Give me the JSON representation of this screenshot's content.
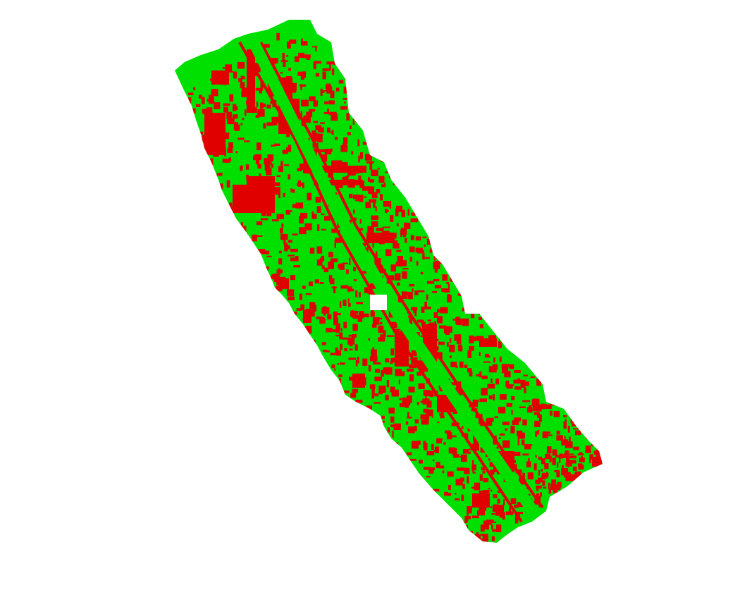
{
  "map": {
    "colors": {
      "background": "#ffffff",
      "green_class": "#00e000",
      "red_class": "#e00000",
      "hole": "#ffffff"
    },
    "legend": []
  }
}
